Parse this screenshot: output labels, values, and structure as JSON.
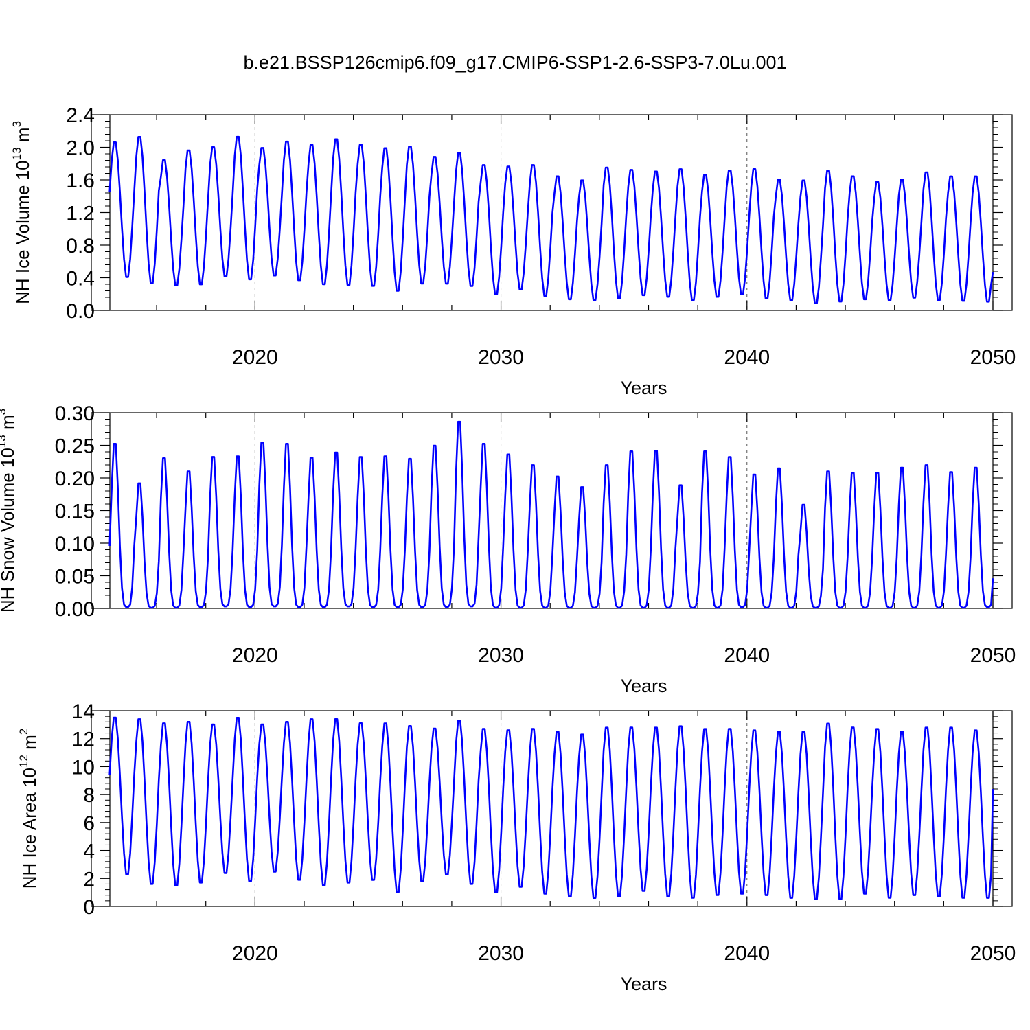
{
  "title": "b.e21.BSSP126cmip6.f09_g17.CMIP6-SSP1-2.6-SSP3-7.0Lu.001",
  "chart_data": [
    {
      "type": "line",
      "name": "ice-volume",
      "ylabel": {
        "main": "NH Ice Volume 10",
        "sup1": "13",
        "mid": " m",
        "sup2": "3"
      },
      "xlabel": "Years",
      "xlim": [
        2014.1,
        2050.0
      ],
      "ylim": [
        0.0,
        2.4
      ],
      "yticks": [
        "0.0",
        "0.4",
        "0.8",
        "1.2",
        "1.6",
        "2.0",
        "2.4"
      ],
      "xticks": [
        "2020",
        "2030",
        "2040",
        "2050"
      ],
      "ytick_values": [
        0.0,
        0.4,
        0.8,
        1.2,
        1.6,
        2.0,
        2.4
      ],
      "xtick_values": [
        2020,
        2030,
        2040,
        2050
      ],
      "color": "#0000ff",
      "x": {
        "start_year": 2015,
        "start_month": 1,
        "months": 432
      },
      "seasonal_max": [
        2.09,
        2.16,
        1.87,
        1.99,
        2.03,
        2.16,
        2.02,
        2.1,
        2.06,
        2.13,
        2.06,
        2.02,
        2.04,
        1.91,
        1.96,
        1.81,
        1.79,
        1.81,
        1.67,
        1.62,
        1.78,
        1.75,
        1.73,
        1.76,
        1.69,
        1.74,
        1.76,
        1.63,
        1.62,
        1.74,
        1.67,
        1.6,
        1.63,
        1.72,
        1.67,
        1.67
      ],
      "seasonal_min": [
        0.38,
        0.3,
        0.28,
        0.29,
        0.39,
        0.35,
        0.4,
        0.34,
        0.29,
        0.28,
        0.27,
        0.21,
        0.3,
        0.3,
        0.27,
        0.17,
        0.23,
        0.15,
        0.11,
        0.1,
        0.12,
        0.16,
        0.14,
        0.1,
        0.14,
        0.17,
        0.12,
        0.1,
        0.06,
        0.08,
        0.11,
        0.1,
        0.13,
        0.1,
        0.09,
        0.08
      ],
      "end_value": 0.47
    },
    {
      "type": "line",
      "name": "snow-volume",
      "ylabel": {
        "main": "NH Snow Volume 10",
        "sup1": "13",
        "mid": " m",
        "sup2": "3"
      },
      "xlabel": "Years",
      "xlim": [
        2014.1,
        2050.0
      ],
      "ylim": [
        0.0,
        0.3
      ],
      "yticks": [
        "0.00",
        "0.05",
        "0.10",
        "0.15",
        "0.20",
        "0.25",
        "0.30"
      ],
      "xticks": [
        "2020",
        "2030",
        "2040",
        "2050"
      ],
      "ytick_values": [
        0.0,
        0.05,
        0.1,
        0.15,
        0.2,
        0.25,
        0.3
      ],
      "xtick_values": [
        2020,
        2030,
        2040,
        2050
      ],
      "color": "#0000ff",
      "x": {
        "start_year": 2015,
        "start_month": 1,
        "months": 432
      },
      "seasonal_max": [
        0.262,
        0.199,
        0.239,
        0.218,
        0.241,
        0.242,
        0.264,
        0.262,
        0.24,
        0.248,
        0.241,
        0.242,
        0.238,
        0.259,
        0.297,
        0.262,
        0.245,
        0.228,
        0.21,
        0.193,
        0.228,
        0.25,
        0.251,
        0.196,
        0.25,
        0.241,
        0.213,
        0.223,
        0.165,
        0.218,
        0.216,
        0.216,
        0.224,
        0.228,
        0.217,
        0.224
      ],
      "seasonal_min": [
        0.002,
        0.001,
        0.001,
        0.002,
        0.003,
        0.002,
        0.003,
        0.002,
        0.002,
        0.003,
        0.002,
        0.002,
        0.002,
        0.002,
        0.003,
        0.001,
        0.001,
        0.001,
        0.001,
        0.001,
        0.001,
        0.001,
        0.001,
        0.001,
        0.001,
        0.002,
        0.001,
        0.001,
        0.001,
        0.001,
        0.001,
        0.001,
        0.001,
        0.001,
        0.001,
        0.002
      ],
      "end_value": 0.046
    },
    {
      "type": "line",
      "name": "ice-area",
      "ylabel": {
        "main": "NH Ice Area 10",
        "sup1": "12",
        "mid": " m",
        "sup2": "2"
      },
      "xlabel": "Years",
      "xlim": [
        2014.1,
        2050.0
      ],
      "ylim": [
        0,
        14
      ],
      "yticks": [
        "0",
        "2",
        "4",
        "6",
        "8",
        "10",
        "12",
        "14"
      ],
      "xticks": [
        "2020",
        "2030",
        "2040",
        "2050"
      ],
      "ytick_values": [
        0,
        2,
        4,
        6,
        8,
        10,
        12,
        14
      ],
      "xtick_values": [
        2020,
        2030,
        2040,
        2050
      ],
      "color": "#0000ff",
      "x": {
        "start_year": 2015,
        "start_month": 1,
        "months": 432
      },
      "seasonal_max": [
        13.7,
        13.6,
        13.3,
        13.4,
        13.2,
        13.7,
        13.2,
        13.4,
        13.6,
        13.6,
        13.3,
        13.3,
        13.1,
        12.9,
        13.5,
        12.9,
        12.8,
        12.9,
        12.7,
        12.5,
        13.0,
        13.0,
        13.0,
        13.1,
        12.9,
        12.9,
        12.8,
        12.7,
        12.7,
        13.3,
        13.0,
        12.9,
        12.7,
        13.0,
        13.0,
        12.8
      ],
      "seasonal_min": [
        2.1,
        1.4,
        1.3,
        1.5,
        2.2,
        1.6,
        2.3,
        1.7,
        1.3,
        1.5,
        1.7,
        0.8,
        1.6,
        2.1,
        1.4,
        0.8,
        1.2,
        0.7,
        0.5,
        0.4,
        0.5,
        0.9,
        0.5,
        0.4,
        0.6,
        0.7,
        0.6,
        0.4,
        0.3,
        0.3,
        0.7,
        0.4,
        0.6,
        0.5,
        0.4,
        0.4
      ],
      "end_value": 8.4
    }
  ]
}
